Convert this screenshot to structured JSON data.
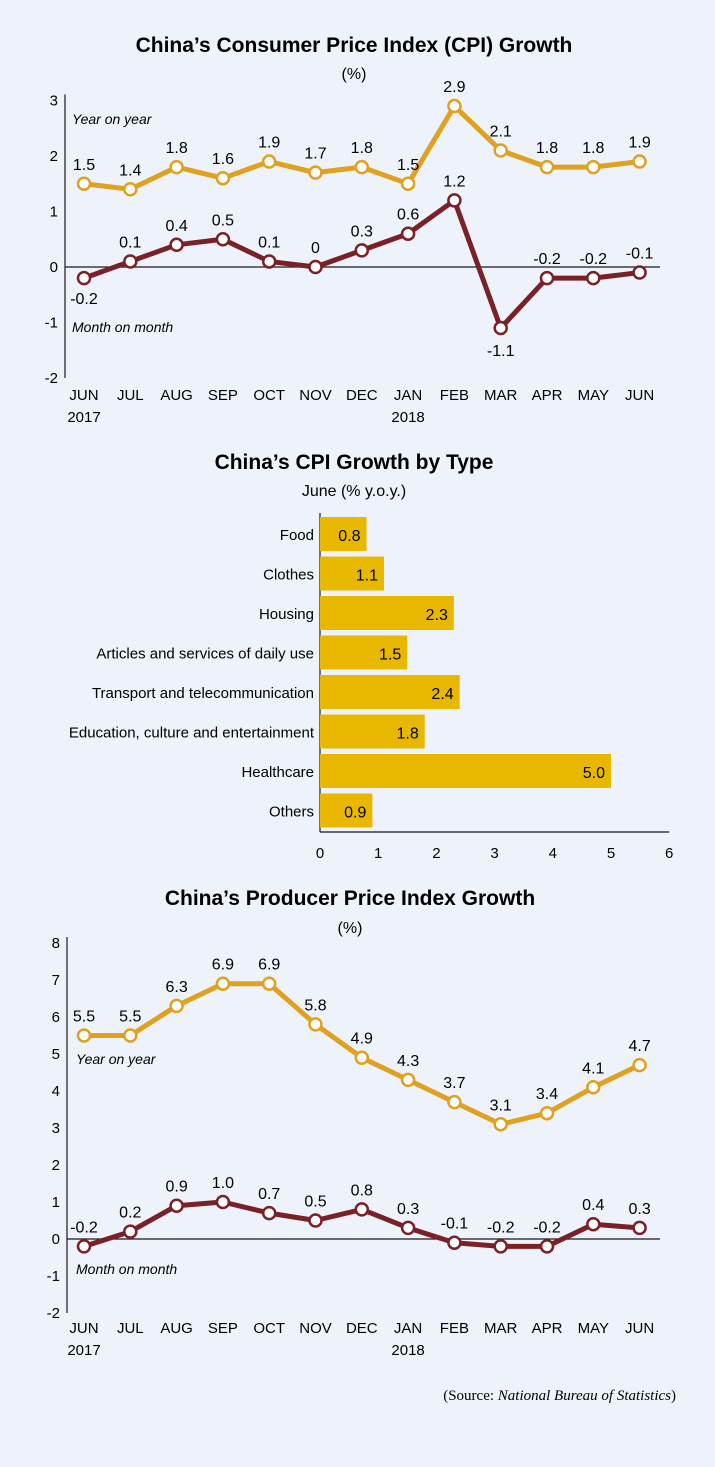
{
  "colors": {
    "background": "#eef2fa",
    "yoy": "#e0a020",
    "mom": "#7a2128",
    "bar": "#e8b800",
    "axis": "#1a1a1a"
  },
  "source": {
    "prefix": "(Source: ",
    "name": "National Bureau of Statistics",
    "suffix": ")"
  },
  "chart_data": [
    {
      "id": "cpi",
      "type": "line",
      "title": "China’s Consumer Price Index (CPI) Growth",
      "subtitle": "(%)",
      "categories": [
        "JUN",
        "JUL",
        "AUG",
        "SEP",
        "OCT",
        "NOV",
        "DEC",
        "JAN",
        "FEB",
        "MAR",
        "APR",
        "MAY",
        "JUN"
      ],
      "year_labels": [
        {
          "index": 0,
          "label": "2017"
        },
        {
          "index": 7,
          "label": "2018"
        }
      ],
      "yticks": [
        3,
        2,
        1,
        0,
        -1,
        -2
      ],
      "ylim": [
        -2,
        3
      ],
      "series": [
        {
          "name": "Year on year",
          "labels": [
            "1.5",
            "1.4",
            "1.8",
            "1.6",
            "1.9",
            "1.7",
            "1.8",
            "1.5",
            "2.9",
            "2.1",
            "1.8",
            "1.8",
            "1.9"
          ],
          "values": [
            1.5,
            1.4,
            1.8,
            1.6,
            1.9,
            1.7,
            1.8,
            1.5,
            2.9,
            2.1,
            1.8,
            1.8,
            1.9
          ]
        },
        {
          "name": "Month on month",
          "labels": [
            "-0.2",
            "0.1",
            "0.4",
            "0.5",
            "0.1",
            "0",
            "0.3",
            "0.6",
            "1.2",
            "-1.1",
            "-0.2",
            "-0.2",
            "-0.1"
          ],
          "values": [
            -0.2,
            0.1,
            0.4,
            0.5,
            0.1,
            0,
            0.3,
            0.6,
            1.2,
            -1.1,
            -0.2,
            -0.2,
            -0.1
          ]
        }
      ]
    },
    {
      "id": "cpi-type",
      "type": "bar",
      "orientation": "horizontal",
      "title": "China’s CPI Growth by Type",
      "subtitle": "June (% y.o.y.)",
      "categories": [
        "Food",
        "Clothes",
        "Housing",
        "Articles and services of daily use",
        "Transport and telecommunication",
        "Education, culture and entertainment",
        "Healthcare",
        "Others"
      ],
      "labels": [
        "0.8",
        "1.1",
        "2.3",
        "1.5",
        "2.4",
        "1.8",
        "5.0",
        "0.9"
      ],
      "values": [
        0.8,
        1.1,
        2.3,
        1.5,
        2.4,
        1.8,
        5.0,
        0.9
      ],
      "xticks": [
        0,
        1,
        2,
        3,
        4,
        5,
        6
      ],
      "xlim": [
        0,
        6
      ]
    },
    {
      "id": "ppi",
      "type": "line",
      "title": "China’s Producer Price Index Growth",
      "subtitle": "(%)",
      "categories": [
        "JUN",
        "JUL",
        "AUG",
        "SEP",
        "OCT",
        "NOV",
        "DEC",
        "JAN",
        "FEB",
        "MAR",
        "APR",
        "MAY",
        "JUN"
      ],
      "year_labels": [
        {
          "index": 0,
          "label": "2017"
        },
        {
          "index": 7,
          "label": "2018"
        }
      ],
      "yticks": [
        8,
        7,
        6,
        5,
        4,
        3,
        2,
        1,
        0,
        -1,
        -2
      ],
      "ylim": [
        -2,
        8
      ],
      "series": [
        {
          "name": "Year on year",
          "labels": [
            "5.5",
            "5.5",
            "6.3",
            "6.9",
            "6.9",
            "5.8",
            "4.9",
            "4.3",
            "3.7",
            "3.1",
            "3.4",
            "4.1",
            "4.7"
          ],
          "values": [
            5.5,
            5.5,
            6.3,
            6.9,
            6.9,
            5.8,
            4.9,
            4.3,
            3.7,
            3.1,
            3.4,
            4.1,
            4.7
          ]
        },
        {
          "name": "Month on month",
          "labels": [
            "-0.2",
            "0.2",
            "0.9",
            "1.0",
            "0.7",
            "0.5",
            "0.8",
            "0.3",
            "-0.1",
            "-0.2",
            "-0.2",
            "0.4",
            "0.3"
          ],
          "values": [
            -0.2,
            0.2,
            0.9,
            1.0,
            0.7,
            0.5,
            0.8,
            0.3,
            -0.1,
            -0.2,
            -0.2,
            0.4,
            0.3
          ]
        }
      ]
    }
  ]
}
